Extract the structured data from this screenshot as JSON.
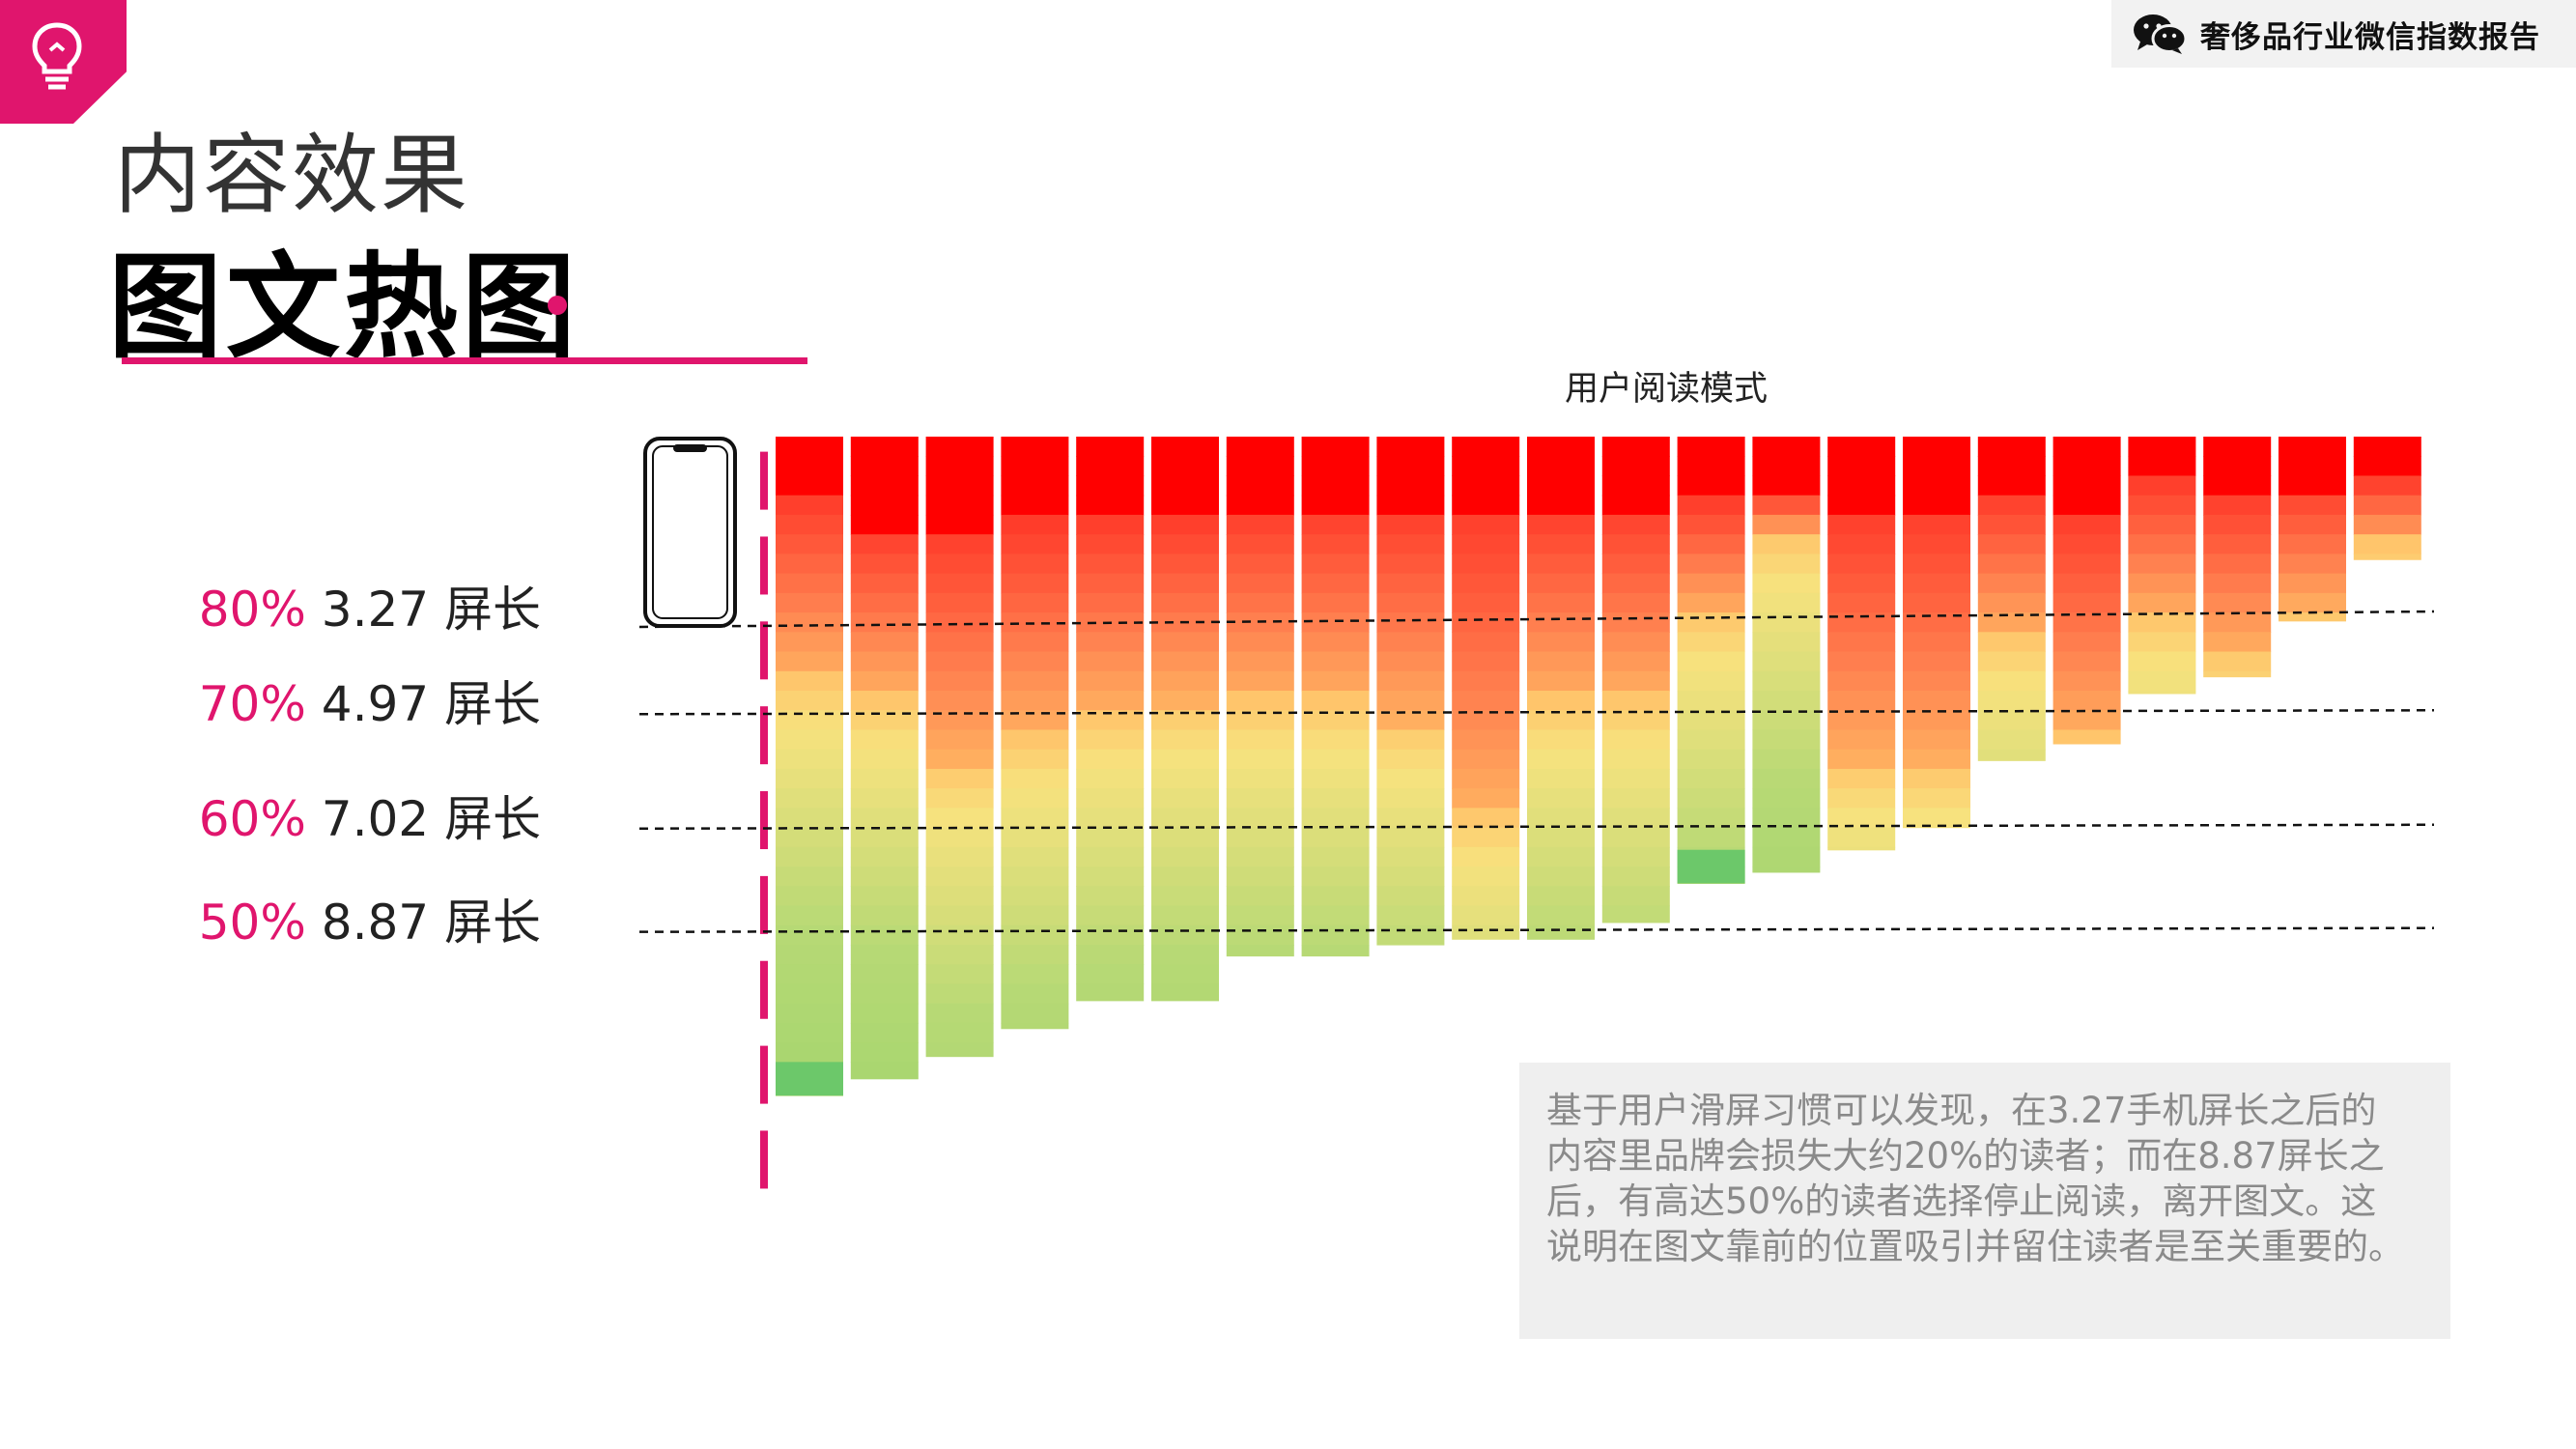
{
  "header": {
    "report_title": "奢侈品行业微信指数报告",
    "section_title": "内容效果",
    "page_title": "图文热图"
  },
  "icons": {
    "corner": "lightbulb-icon",
    "report": "wechat-icon",
    "device": "phone-icon"
  },
  "colors": {
    "accent": "#e0156d",
    "hot": "#ff0000",
    "warm": "#ff7f4f",
    "mid": "#f7e27e",
    "cool": "#b7d975",
    "cold": "#6cc86a"
  },
  "chart_data": {
    "type": "heatmap",
    "title": "用户阅读模式",
    "reference_lines": [
      {
        "pct_label": "80%",
        "value_label": "3.27 屏长",
        "screens": 3.27
      },
      {
        "pct_label": "70%",
        "value_label": "4.97 屏长",
        "screens": 4.97
      },
      {
        "pct_label": "60%",
        "value_label": "7.02 屏长",
        "screens": 7.02
      },
      {
        "pct_label": "50%",
        "value_label": "8.87 屏长",
        "screens": 8.87
      }
    ],
    "columns": [
      {
        "length": 11.8,
        "hot": 1.1,
        "warm": 3.2
      },
      {
        "length": 11.5,
        "hot": 1.65,
        "warm": 3.0
      },
      {
        "length": 11.1,
        "hot": 1.65,
        "warm": 4.2
      },
      {
        "length": 10.6,
        "hot": 1.55,
        "warm": 3.8
      },
      {
        "length": 10.1,
        "hot": 1.45,
        "warm": 3.5
      },
      {
        "length": 10.1,
        "hot": 1.45,
        "warm": 3.3
      },
      {
        "length": 9.3,
        "hot": 1.3,
        "warm": 3.4
      },
      {
        "length": 9.3,
        "hot": 1.3,
        "warm": 3.4
      },
      {
        "length": 9.1,
        "hot": 1.3,
        "warm": 3.8
      },
      {
        "length": 9.0,
        "hot": 1.3,
        "warm": 5.4
      },
      {
        "length": 9.0,
        "hot": 1.3,
        "warm": 3.4
      },
      {
        "length": 8.7,
        "hot": 1.25,
        "warm": 3.4
      },
      {
        "length": 8.0,
        "hot": 1.15,
        "warm": 2.0
      },
      {
        "length": 7.8,
        "hot": 1.05,
        "warm": 0.7
      },
      {
        "length": 7.4,
        "hot": 1.35,
        "warm": 4.5
      },
      {
        "length": 7.0,
        "hot": 1.3,
        "warm": 4.6
      },
      {
        "length": 5.8,
        "hot": 1.05,
        "warm": 2.5
      },
      {
        "length": 5.5,
        "hot": 1.35,
        "warm": 4.0
      },
      {
        "length": 4.6,
        "hot": 0.8,
        "warm": 2.4
      },
      {
        "length": 4.3,
        "hot": 1.05,
        "warm": 2.8
      },
      {
        "length": 3.3,
        "hot": 0.9,
        "warm": 2.2
      },
      {
        "length": 2.2,
        "hot": 0.8,
        "warm": 1.1
      }
    ]
  },
  "note": {
    "text": "基于用户滑屏习惯可以发现，在3.27手机屏长之后的内容里品牌会损失大约20%的读者；而在8.87屏长之后，有高达50%的读者选择停止阅读，离开图文。这说明在图文靠前的位置吸引并留住读者是至关重要的。"
  }
}
